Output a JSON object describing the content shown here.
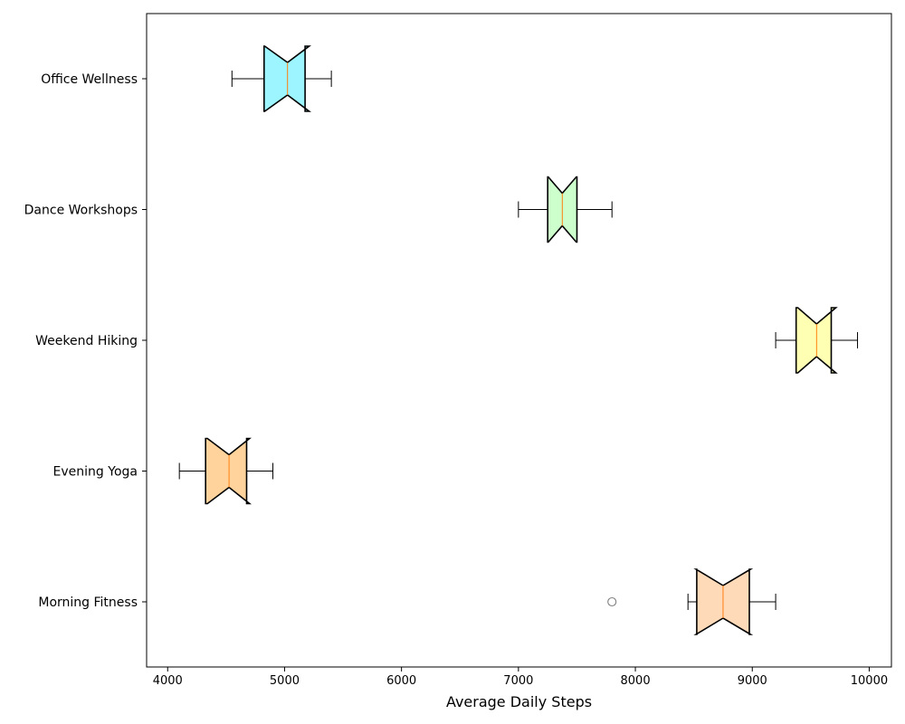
{
  "chart_data": {
    "type": "boxplot",
    "orientation": "horizontal",
    "notched": true,
    "title": "",
    "xlabel": "Average Daily Steps",
    "ylabel": "",
    "xlim": [
      3820,
      10190
    ],
    "xticks": [
      4000,
      5000,
      6000,
      7000,
      8000,
      9000,
      10000
    ],
    "grid": false,
    "categories": [
      "Morning Fitness",
      "Evening Yoga",
      "Weekend Hiking",
      "Dance Workshops",
      "Office Wellness"
    ],
    "series": [
      {
        "category": "Morning Fitness",
        "whisker_low": 8450,
        "q1": 8525,
        "notch_low": 8520,
        "median": 8750,
        "notch_high": 8985,
        "q3": 8975,
        "whisker_high": 9200,
        "outliers": [
          7800
        ],
        "color": "#FFDAB9"
      },
      {
        "category": "Evening Yoga",
        "whisker_low": 4100,
        "q1": 4325,
        "notch_low": 4340,
        "median": 4525,
        "notch_high": 4700,
        "q3": 4675,
        "whisker_high": 4900,
        "outliers": [],
        "color": "#FFD39B"
      },
      {
        "category": "Weekend Hiking",
        "whisker_low": 9200,
        "q1": 9375,
        "notch_low": 9390,
        "median": 9550,
        "notch_high": 9715,
        "q3": 9675,
        "whisker_high": 9900,
        "outliers": [],
        "color": "#FFFFB3"
      },
      {
        "category": "Dance Workshops",
        "whisker_low": 7000,
        "q1": 7250,
        "notch_low": 7255,
        "median": 7375,
        "notch_high": 7495,
        "q3": 7500,
        "whisker_high": 7800,
        "outliers": [],
        "color": "#CCFFCC"
      },
      {
        "category": "Office Wellness",
        "whisker_low": 4550,
        "q1": 4825,
        "notch_low": 4830,
        "median": 5025,
        "notch_high": 5210,
        "q3": 5175,
        "whisker_high": 5400,
        "outliers": [],
        "color": "#9CF5FF"
      }
    ],
    "median_color": "#FF7F0E",
    "outlier_color": "#808080"
  }
}
